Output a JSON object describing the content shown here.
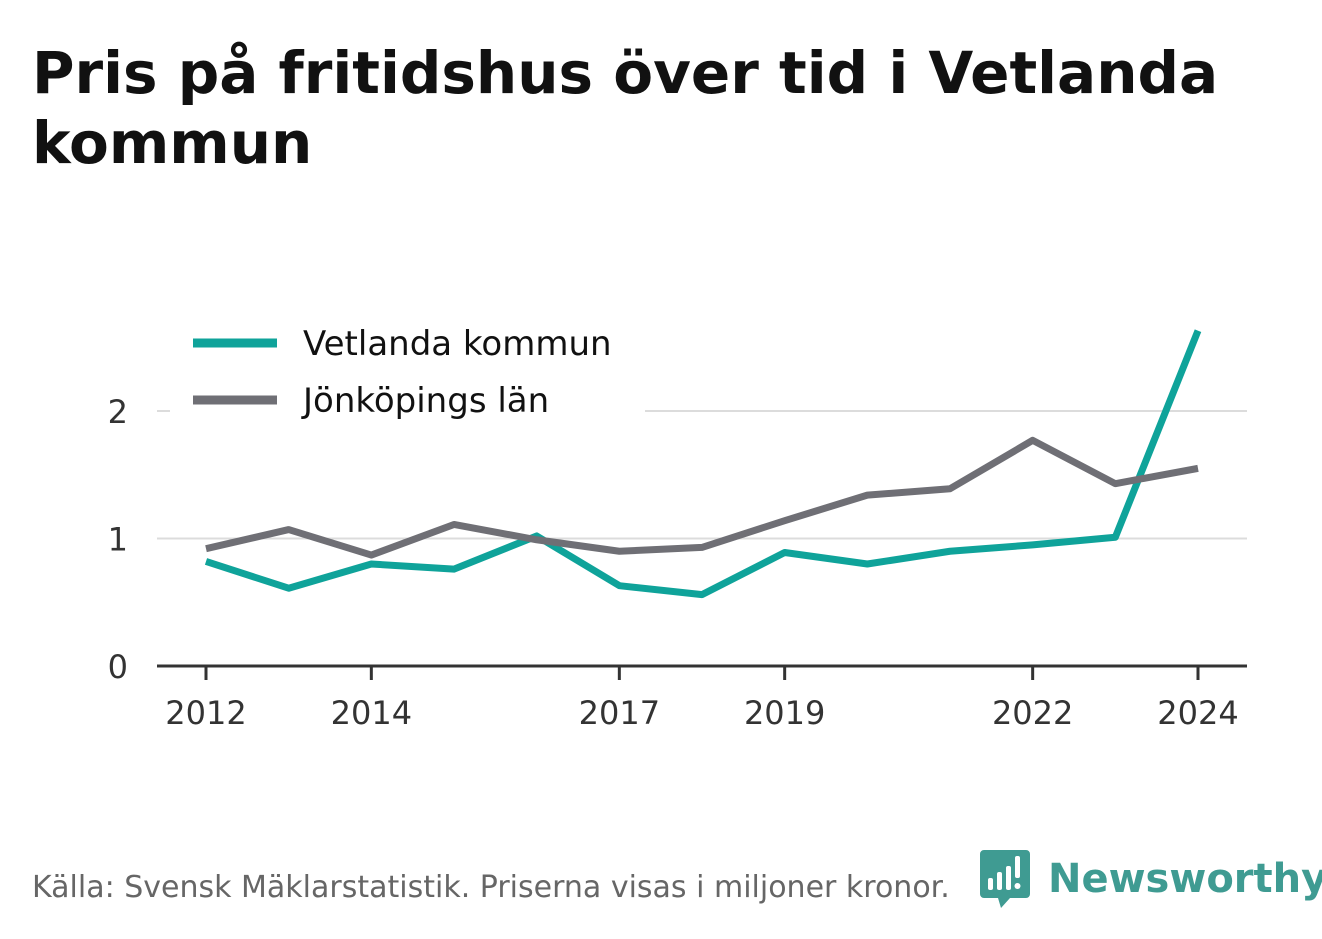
{
  "title": "Pris på fritidshus över tid i Vetlanda kommun",
  "source": "Källa: Svensk Mäklarstatistik. Priserna visas i miljoner kronor.",
  "brand": {
    "name": "Newsworthy",
    "icon": "bar-chart-speech-bubble-icon",
    "color": "#3f9b92"
  },
  "chart_data": {
    "type": "line",
    "x": [
      2012,
      2013,
      2014,
      2015,
      2016,
      2017,
      2018,
      2019,
      2020,
      2021,
      2022,
      2023,
      2024
    ],
    "x_tick_labels": [
      "2012",
      "2014",
      "2017",
      "2019",
      "2022",
      "2024"
    ],
    "y_ticks": [
      0,
      1,
      2
    ],
    "y_tick_labels": [
      "0",
      "1",
      "2"
    ],
    "ylim": [
      0,
      2.7
    ],
    "xlabel": "",
    "ylabel": "",
    "grid": true,
    "legend_position": "top-left",
    "series": [
      {
        "name": "Vetlanda kommun",
        "color": "#0fa39a",
        "values": [
          0.82,
          0.61,
          0.8,
          0.76,
          1.02,
          0.63,
          0.56,
          0.89,
          0.8,
          0.9,
          0.95,
          1.01,
          2.63
        ]
      },
      {
        "name": "Jönköpings län",
        "color": "#6f6f75",
        "values": [
          0.92,
          1.07,
          0.87,
          1.11,
          0.99,
          0.9,
          0.93,
          1.14,
          1.34,
          1.39,
          1.77,
          1.43,
          1.55
        ]
      }
    ]
  }
}
